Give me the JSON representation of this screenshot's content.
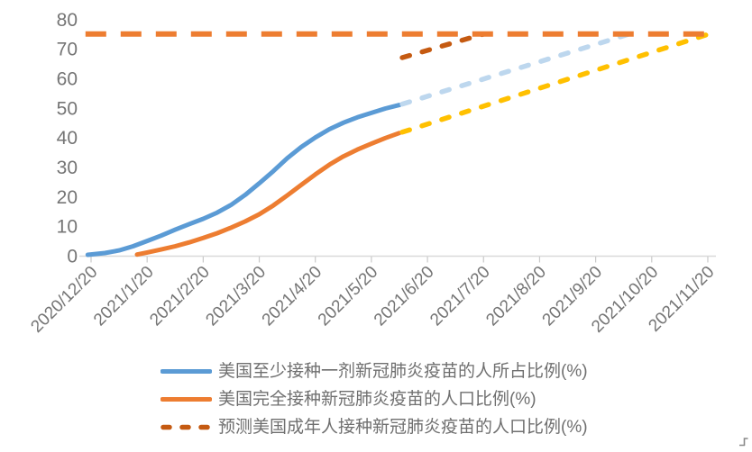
{
  "chart_data": {
    "type": "line",
    "title": "",
    "x_axis": {
      "labels": [
        "2020/12/20",
        "2021/1/20",
        "2021/2/20",
        "2021/3/20",
        "2021/4/20",
        "2021/5/20",
        "2021/6/20",
        "2021/7/20",
        "2021/8/20",
        "2021/9/20",
        "2021/10/20",
        "2021/11/20"
      ]
    },
    "y_axis": {
      "min": 0,
      "max": 80,
      "step": 10,
      "ticks": [
        "0",
        "10",
        "20",
        "30",
        "40",
        "50",
        "60",
        "70",
        "80"
      ]
    },
    "series": [
      {
        "id": "one-dose-actual",
        "name": "美国至少接种一剂新冠肺炎疫苗的人所占比例(%)",
        "color": "#5B9BD5",
        "style": "solid",
        "points": [
          [
            -0.06,
            0.3
          ],
          [
            0.25,
            0.9
          ],
          [
            0.5,
            1.8
          ],
          [
            0.75,
            3.2
          ],
          [
            1,
            5
          ],
          [
            1.25,
            6.8
          ],
          [
            1.5,
            8.8
          ],
          [
            1.75,
            10.7
          ],
          [
            2,
            12.5
          ],
          [
            2.25,
            14.6
          ],
          [
            2.5,
            17.2
          ],
          [
            2.75,
            20.6
          ],
          [
            3,
            24.5
          ],
          [
            3.25,
            28.6
          ],
          [
            3.5,
            33
          ],
          [
            3.75,
            36.8
          ],
          [
            4,
            40
          ],
          [
            4.25,
            42.8
          ],
          [
            4.5,
            45
          ],
          [
            4.75,
            46.8
          ],
          [
            5,
            48.3
          ],
          [
            5.25,
            49.8
          ],
          [
            5.5,
            51
          ]
        ]
      },
      {
        "id": "fully-vaccinated-actual",
        "name": "美国完全接种新冠肺炎疫苗的人口比例(%)",
        "color": "#ED7D31",
        "style": "solid",
        "points": [
          [
            0.82,
            0.4
          ],
          [
            1,
            1.1
          ],
          [
            1.25,
            2.1
          ],
          [
            1.5,
            3.2
          ],
          [
            1.75,
            4.5
          ],
          [
            2,
            6
          ],
          [
            2.25,
            7.6
          ],
          [
            2.5,
            9.5
          ],
          [
            2.75,
            11.6
          ],
          [
            3,
            14
          ],
          [
            3.25,
            17
          ],
          [
            3.5,
            20.4
          ],
          [
            3.75,
            24
          ],
          [
            4,
            27.5
          ],
          [
            4.25,
            30.8
          ],
          [
            4.5,
            33.6
          ],
          [
            4.75,
            35.9
          ],
          [
            5,
            37.9
          ],
          [
            5.25,
            39.8
          ],
          [
            5.5,
            41.5
          ]
        ]
      },
      {
        "id": "one-dose-projection",
        "color": "#BDD7EE",
        "style": "dashed",
        "points": [
          [
            5.55,
            51.3
          ],
          [
            9.6,
            75
          ]
        ]
      },
      {
        "id": "fully-vaccinated-projection",
        "color": "#FFC000",
        "style": "dashed",
        "points": [
          [
            5.55,
            41.8
          ],
          [
            11.02,
            75
          ]
        ]
      },
      {
        "id": "adult-prediction",
        "name": "预测美国成年人接种新冠肺炎疫苗的人口比例(%)",
        "color": "#C55A11",
        "style": "dashed",
        "points": [
          [
            5.55,
            67
          ],
          [
            7.0,
            75
          ]
        ]
      },
      {
        "id": "target-75-line",
        "color": "#ED7D31",
        "style": "dashed-long",
        "points": [
          [
            -0.1,
            75
          ],
          [
            11.08,
            75
          ]
        ]
      }
    ],
    "legend": {
      "position": "bottom",
      "items": [
        {
          "label": "美国至少接种一剂新冠肺炎疫苗的人所占比例(%)",
          "color": "#5B9BD5",
          "style": "solid"
        },
        {
          "label": "美国完全接种新冠肺炎疫苗的人口比例(%)",
          "color": "#ED7D31",
          "style": "solid"
        },
        {
          "label": "预测美国成年人接种新冠肺炎疫苗的人口比例(%)",
          "color": "#C55A11",
          "style": "dashed"
        }
      ]
    },
    "colors": {
      "axis_line": "#D9D9D9",
      "tick_mark": "#C9C9C9",
      "axis_text": "#757575"
    }
  }
}
